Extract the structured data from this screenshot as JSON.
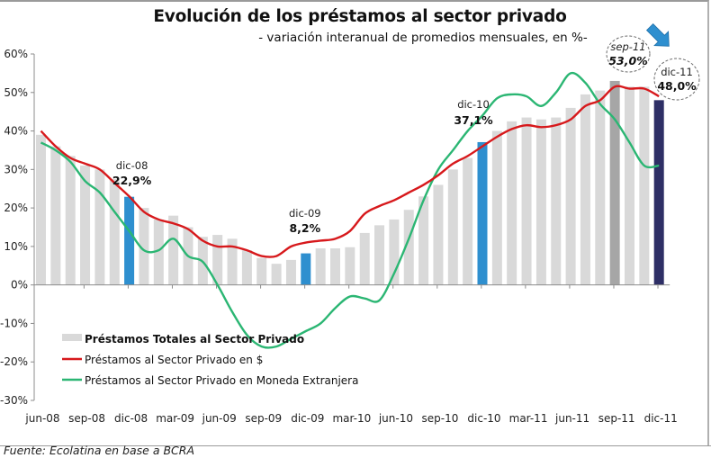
{
  "chart_data": {
    "type": "bar",
    "title": "Evolución de los préstamos al sector privado",
    "subtitle": "- variación interanual de promedios mensuales, en %-",
    "source": "Fuente: Ecolatina en base a BCRA",
    "xlabel": "",
    "ylabel": "",
    "ylim": [
      -30,
      60
    ],
    "yticks": [
      -30,
      -20,
      -10,
      0,
      10,
      20,
      30,
      40,
      50,
      60
    ],
    "ytick_labels": [
      "-30%",
      "-20%",
      "-10%",
      "0%",
      "10%",
      "20%",
      "30%",
      "40%",
      "50%",
      "60%"
    ],
    "xtick_labels": [
      "jun-08",
      "sep-08",
      "dic-08",
      "mar-09",
      "jun-09",
      "sep-09",
      "dic-09",
      "mar-10",
      "jun-10",
      "sep-10",
      "dic-10",
      "mar-11",
      "jun-11",
      "sep-11",
      "dic-11"
    ],
    "grid": false,
    "legend_position": "bottom-left",
    "categories": [
      "jun-08",
      "jul-08",
      "ago-08",
      "sep-08",
      "oct-08",
      "nov-08",
      "dic-08",
      "ene-09",
      "feb-09",
      "mar-09",
      "abr-09",
      "may-09",
      "jun-09",
      "jul-09",
      "ago-09",
      "sep-09",
      "oct-09",
      "nov-09",
      "dic-09",
      "ene-10",
      "feb-10",
      "mar-10",
      "abr-10",
      "may-10",
      "jun-10",
      "jul-10",
      "ago-10",
      "sep-10",
      "oct-10",
      "nov-10",
      "dic-10",
      "ene-11",
      "feb-11",
      "mar-11",
      "abr-11",
      "may-11",
      "jun-11",
      "jul-11",
      "ago-11",
      "sep-11",
      "oct-11",
      "nov-11",
      "dic-11"
    ],
    "series": [
      {
        "name": "Préstamos Totales al Sector Privado",
        "kind": "bar",
        "color": "#d9d9d9",
        "values": [
          39,
          36,
          33.5,
          31,
          30,
          27.5,
          22.9,
          20,
          17,
          18,
          15,
          12.5,
          13,
          12,
          9,
          7,
          5.5,
          6.5,
          8.2,
          9.5,
          9.5,
          9.8,
          13.5,
          15.5,
          17,
          19.5,
          23,
          26,
          30,
          33,
          37.1,
          40,
          42.5,
          43.5,
          43,
          43.5,
          46,
          49.5,
          50.5,
          53.0,
          51.5,
          51.5,
          48.0
        ]
      },
      {
        "name": "Préstamos al Sector Privado en $",
        "kind": "line",
        "color": "#d7191c",
        "values": [
          40,
          36,
          33,
          31.5,
          30,
          26.5,
          23,
          19,
          17,
          16,
          14.5,
          11.5,
          10,
          10,
          9,
          7.5,
          7.5,
          10,
          11,
          11.5,
          12,
          14,
          18.5,
          20.5,
          22,
          24,
          26,
          28.5,
          31.5,
          33.5,
          36,
          38.5,
          40.5,
          41.5,
          41,
          41.5,
          43,
          46.5,
          48,
          51.5,
          51,
          51,
          49
        ]
      },
      {
        "name": "Préstamos al Sector Privado en Moneda Extranjera",
        "kind": "line",
        "color": "#2bb673",
        "values": [
          37,
          35,
          32,
          27,
          24,
          19,
          14,
          9,
          9,
          12,
          7.5,
          6,
          0,
          -7,
          -13,
          -16,
          -16,
          -14,
          -12,
          -10,
          -6,
          -3,
          -3.5,
          -4,
          3,
          12,
          22,
          30,
          35,
          40,
          44,
          48.5,
          49.5,
          49,
          46.5,
          50,
          55,
          52.5,
          47,
          43,
          37,
          31,
          31
        ]
      }
    ],
    "highlight_colors": {
      "dic-08": "#2e8fcf",
      "dic-09": "#2e8fcf",
      "dic-10": "#2e8fcf",
      "sep-11": "#a6a6a6",
      "dic-11": "#2e2f66"
    },
    "annotations": [
      {
        "category": "dic-08",
        "date": "dic-08",
        "value": "22,9%",
        "style": "plain"
      },
      {
        "category": "dic-09",
        "date": "dic-09",
        "value": "8,2%",
        "style": "plain"
      },
      {
        "category": "dic-10",
        "date": "dic-10",
        "value": "37,1%",
        "style": "plain"
      },
      {
        "category": "sep-11",
        "date": "sep-11",
        "value": "53,0%",
        "style": "dashed-ellipse-italic"
      },
      {
        "category": "dic-11",
        "date": "dic-11",
        "value": "48,0%",
        "style": "dashed-ellipse"
      }
    ],
    "arrow": {
      "color": "#2e8fcf",
      "direction": "down-right",
      "points_to": "dic-11"
    }
  }
}
